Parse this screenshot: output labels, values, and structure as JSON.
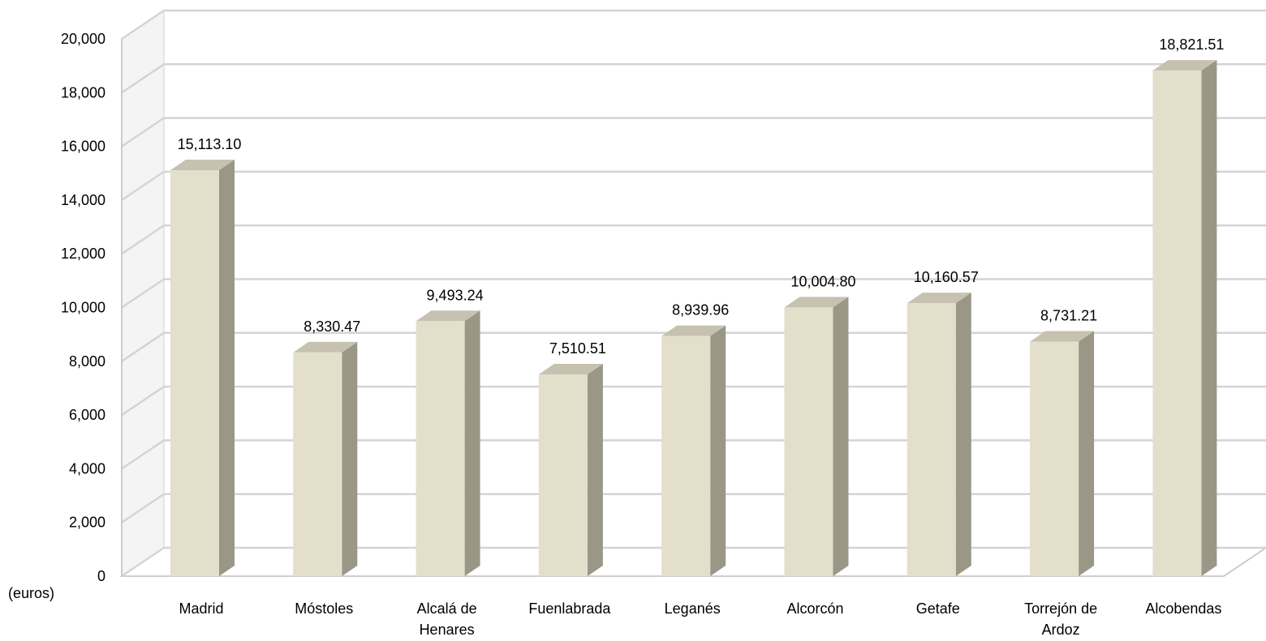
{
  "chart_data": {
    "type": "bar",
    "categories": [
      [
        "Madrid"
      ],
      [
        "Móstoles"
      ],
      [
        "Alcalá de",
        "Henares"
      ],
      [
        "Fuenlabrada"
      ],
      [
        "Leganés"
      ],
      [
        "Alcorcón"
      ],
      [
        "Getafe"
      ],
      [
        "Torrejón de",
        "Ardoz"
      ],
      [
        "Alcobendas"
      ]
    ],
    "values": [
      15113.1,
      8330.47,
      9493.24,
      7510.51,
      8939.96,
      10004.8,
      10160.57,
      8731.21,
      18821.51
    ],
    "data_labels": [
      "15,113.10",
      "8,330.47",
      "9,493.24",
      "7,510.51",
      "8,939.96",
      "10,004.80",
      "10,160.57",
      "8,731.21",
      "18,821.51"
    ],
    "y_ticks": [
      0,
      2000,
      4000,
      6000,
      8000,
      10000,
      12000,
      14000,
      16000,
      18000,
      20000
    ],
    "y_tick_labels": [
      "0",
      "2,000",
      "4,000",
      "6,000",
      "8,000",
      "10,000",
      "12,000",
      "14,000",
      "16,000",
      "18,000",
      "20,000"
    ],
    "ylim": [
      0,
      20000
    ],
    "unit_label": "(euros)",
    "grid": true,
    "style": "3d-column",
    "colors": {
      "bar_front": "#e3dfcb",
      "bar_side": "#9b9787",
      "bar_top": "#c6c2af",
      "grid": "#d4d4d4",
      "wall": "#f4f4f4"
    }
  }
}
